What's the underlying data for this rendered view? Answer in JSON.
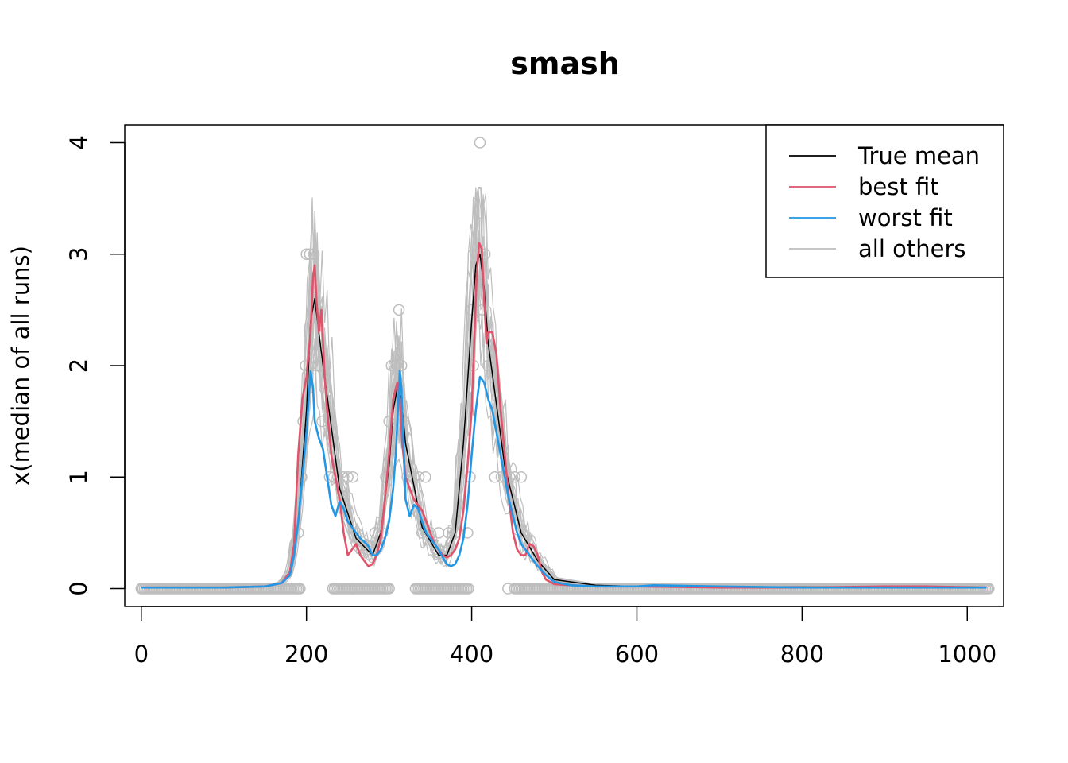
{
  "chart_data": {
    "type": "line",
    "title": "smash",
    "xlabel": "",
    "ylabel": "x(median of all runs)",
    "xlim": [
      -20,
      1044
    ],
    "ylim": [
      -0.16,
      4.16
    ],
    "xticks": [
      0,
      200,
      400,
      600,
      800,
      1000
    ],
    "yticks": [
      0,
      1,
      2,
      3,
      4
    ],
    "legend_position": "top-right",
    "legend": [
      {
        "label": "True mean",
        "color": "#000000"
      },
      {
        "label": "best fit",
        "color": "#DF536B"
      },
      {
        "label": "worst fit",
        "color": "#2297E6"
      },
      {
        "label": "all others",
        "color": "#BEBEBE"
      }
    ],
    "series": [
      {
        "name": "True mean",
        "color": "#000000",
        "x": [
          0,
          100,
          150,
          170,
          180,
          190,
          200,
          205,
          210,
          220,
          240,
          260,
          280,
          290,
          300,
          305,
          310,
          315,
          320,
          340,
          360,
          370,
          380,
          390,
          400,
          405,
          410,
          415,
          420,
          440,
          460,
          480,
          500,
          550,
          600,
          1023
        ],
        "y": [
          0.01,
          0.01,
          0.02,
          0.05,
          0.15,
          0.6,
          1.6,
          2.4,
          2.6,
          2.0,
          0.9,
          0.45,
          0.3,
          0.5,
          1.1,
          1.6,
          1.8,
          1.7,
          1.3,
          0.55,
          0.3,
          0.3,
          0.5,
          1.3,
          2.4,
          2.9,
          3.0,
          2.7,
          2.2,
          1.1,
          0.5,
          0.25,
          0.08,
          0.03,
          0.02,
          0.01
        ]
      },
      {
        "name": "best fit",
        "color": "#DF536B",
        "x": [
          0,
          100,
          150,
          170,
          180,
          185,
          190,
          195,
          200,
          205,
          208,
          210,
          212,
          215,
          218,
          220,
          222,
          225,
          230,
          235,
          240,
          245,
          250,
          255,
          260,
          265,
          270,
          275,
          280,
          285,
          290,
          295,
          300,
          305,
          310,
          313,
          316,
          320,
          325,
          330,
          335,
          340,
          345,
          350,
          355,
          360,
          365,
          370,
          375,
          380,
          385,
          390,
          395,
          400,
          403,
          406,
          409,
          412,
          415,
          418,
          420,
          425,
          430,
          435,
          440,
          445,
          450,
          455,
          460,
          465,
          470,
          475,
          480,
          485,
          490,
          500,
          520,
          550,
          600,
          700,
          800,
          900,
          950,
          1023
        ],
        "y": [
          0.01,
          0.01,
          0.02,
          0.05,
          0.15,
          0.4,
          1.2,
          1.7,
          1.9,
          2.3,
          2.8,
          2.9,
          2.6,
          2.3,
          2.5,
          2.2,
          1.9,
          1.6,
          1.2,
          1.0,
          0.8,
          0.5,
          0.3,
          0.35,
          0.4,
          0.3,
          0.25,
          0.2,
          0.22,
          0.3,
          0.45,
          0.8,
          1.2,
          1.7,
          1.85,
          1.7,
          1.3,
          1.0,
          0.9,
          0.8,
          0.75,
          0.7,
          0.6,
          0.5,
          0.4,
          0.35,
          0.3,
          0.28,
          0.3,
          0.35,
          0.45,
          0.7,
          1.1,
          1.6,
          2.2,
          2.8,
          3.1,
          3.05,
          2.6,
          2.2,
          2.3,
          2.3,
          2.1,
          1.6,
          1.2,
          0.8,
          0.5,
          0.35,
          0.3,
          0.3,
          0.4,
          0.38,
          0.3,
          0.15,
          0.08,
          0.04,
          0.03,
          0.02,
          0.02,
          0.01,
          0.01,
          0.02,
          0.02,
          0.01
        ]
      },
      {
        "name": "worst fit",
        "color": "#2297E6",
        "x": [
          0,
          100,
          150,
          170,
          180,
          185,
          190,
          195,
          200,
          203,
          205,
          208,
          210,
          215,
          220,
          225,
          230,
          235,
          240,
          245,
          250,
          255,
          260,
          265,
          270,
          275,
          280,
          285,
          290,
          295,
          300,
          305,
          308,
          310,
          313,
          315,
          318,
          320,
          325,
          330,
          335,
          340,
          345,
          350,
          355,
          360,
          365,
          370,
          375,
          380,
          385,
          390,
          395,
          400,
          405,
          410,
          415,
          420,
          425,
          430,
          435,
          440,
          445,
          450,
          455,
          460,
          465,
          470,
          475,
          480,
          490,
          500,
          520,
          550,
          600,
          620,
          700,
          800,
          900,
          1023
        ],
        "y": [
          0.01,
          0.01,
          0.02,
          0.05,
          0.12,
          0.3,
          0.6,
          1.0,
          1.4,
          1.75,
          1.95,
          1.8,
          1.5,
          1.35,
          1.25,
          1.0,
          0.75,
          0.65,
          0.78,
          0.72,
          0.6,
          0.55,
          0.5,
          0.45,
          0.42,
          0.38,
          0.3,
          0.3,
          0.35,
          0.45,
          0.6,
          0.9,
          1.2,
          1.5,
          1.95,
          1.8,
          1.2,
          0.8,
          0.65,
          0.75,
          0.72,
          0.6,
          0.5,
          0.45,
          0.4,
          0.35,
          0.28,
          0.22,
          0.2,
          0.22,
          0.3,
          0.45,
          0.75,
          1.2,
          1.6,
          1.9,
          1.85,
          1.7,
          1.6,
          1.4,
          1.2,
          1.0,
          0.8,
          0.65,
          0.5,
          0.4,
          0.35,
          0.3,
          0.25,
          0.2,
          0.12,
          0.06,
          0.03,
          0.02,
          0.02,
          0.03,
          0.02,
          0.01,
          0.01,
          0.01
        ]
      }
    ],
    "points_note": "grey circles: observed counts per position (0, 0.5, 1, 1.5, 2, 2.5, 3, 4)",
    "observed_points": [
      {
        "x": 190,
        "y": 0.5
      },
      {
        "x": 194,
        "y": 1
      },
      {
        "x": 196,
        "y": 1.5
      },
      {
        "x": 199,
        "y": 2
      },
      {
        "x": 200,
        "y": 3
      },
      {
        "x": 204,
        "y": 3
      },
      {
        "x": 207,
        "y": 2.5
      },
      {
        "x": 209,
        "y": 3
      },
      {
        "x": 212,
        "y": 2
      },
      {
        "x": 215,
        "y": 2
      },
      {
        "x": 219,
        "y": 1.5
      },
      {
        "x": 223,
        "y": 2
      },
      {
        "x": 228,
        "y": 1
      },
      {
        "x": 233,
        "y": 1
      },
      {
        "x": 238,
        "y": 1
      },
      {
        "x": 245,
        "y": 1
      },
      {
        "x": 250,
        "y": 1
      },
      {
        "x": 256,
        "y": 1
      },
      {
        "x": 283,
        "y": 0.5
      },
      {
        "x": 292,
        "y": 0.5
      },
      {
        "x": 296,
        "y": 1
      },
      {
        "x": 300,
        "y": 1.5
      },
      {
        "x": 303,
        "y": 2
      },
      {
        "x": 306,
        "y": 2
      },
      {
        "x": 309,
        "y": 2
      },
      {
        "x": 312,
        "y": 2.5
      },
      {
        "x": 315,
        "y": 2
      },
      {
        "x": 318,
        "y": 1.5
      },
      {
        "x": 322,
        "y": 1
      },
      {
        "x": 326,
        "y": 1
      },
      {
        "x": 330,
        "y": 1
      },
      {
        "x": 336,
        "y": 1
      },
      {
        "x": 340,
        "y": 0.5
      },
      {
        "x": 344,
        "y": 1
      },
      {
        "x": 350,
        "y": 0.5
      },
      {
        "x": 360,
        "y": 0.5
      },
      {
        "x": 372,
        "y": 0.5
      },
      {
        "x": 380,
        "y": 0.5
      },
      {
        "x": 395,
        "y": 0.5
      },
      {
        "x": 398,
        "y": 1
      },
      {
        "x": 400,
        "y": 2.5
      },
      {
        "x": 402,
        "y": 2
      },
      {
        "x": 405,
        "y": 3
      },
      {
        "x": 408,
        "y": 3
      },
      {
        "x": 410,
        "y": 4
      },
      {
        "x": 413,
        "y": 2.5
      },
      {
        "x": 416,
        "y": 3
      },
      {
        "x": 420,
        "y": 2
      },
      {
        "x": 424,
        "y": 2
      },
      {
        "x": 428,
        "y": 1
      },
      {
        "x": 432,
        "y": 1.5
      },
      {
        "x": 436,
        "y": 1
      },
      {
        "x": 440,
        "y": 1
      },
      {
        "x": 446,
        "y": 1
      },
      {
        "x": 452,
        "y": 1
      },
      {
        "x": 460,
        "y": 1
      },
      {
        "x": 444,
        "y": 0
      },
      {
        "x": 256,
        "y": 0
      }
    ],
    "zero_point_ranges": [
      [
        0,
        193
      ],
      [
        232,
        300
      ],
      [
        332,
        397
      ],
      [
        452,
        1026
      ]
    ]
  }
}
